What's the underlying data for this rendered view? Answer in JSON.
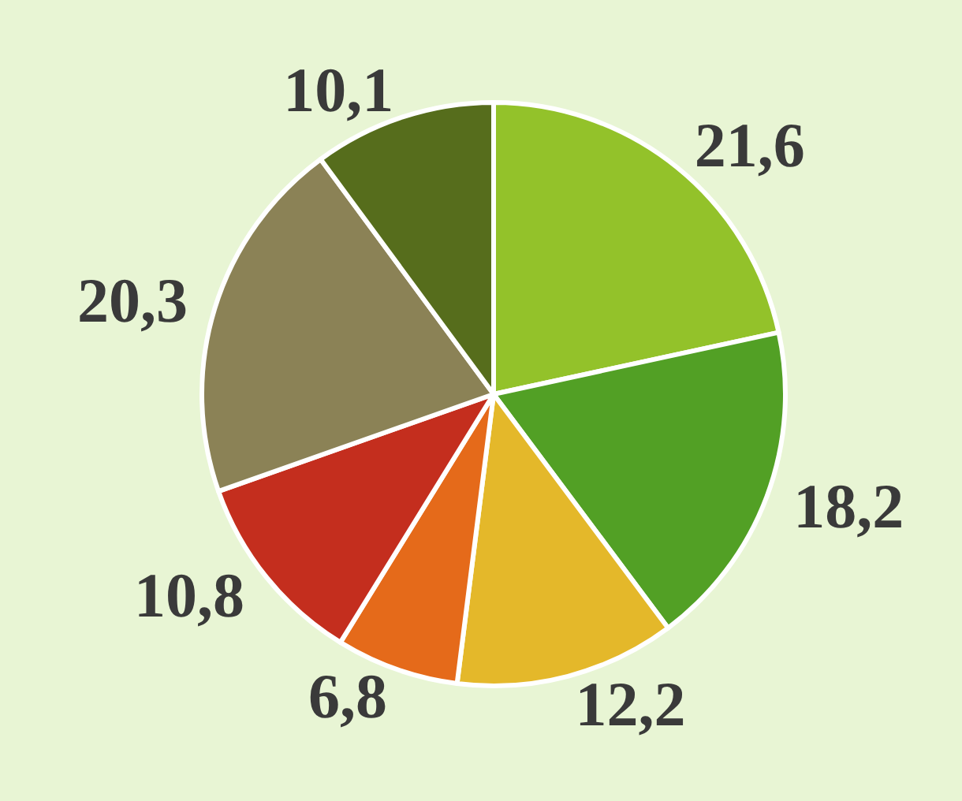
{
  "chart_data": {
    "type": "pie",
    "categories": [
      null,
      null,
      null,
      null,
      null,
      null,
      null
    ],
    "values": [
      21.6,
      18.2,
      12.2,
      6.8,
      10.8,
      20.3,
      10.1
    ],
    "value_labels": [
      "21,6",
      "18,2",
      "12,2",
      "6,8",
      "10,8",
      "20,3",
      "10,1"
    ],
    "colors": [
      "#93c22a",
      "#52a025",
      "#e4b82a",
      "#e56a1a",
      "#c42e1e",
      "#8b8256",
      "#566d1c"
    ]
  }
}
